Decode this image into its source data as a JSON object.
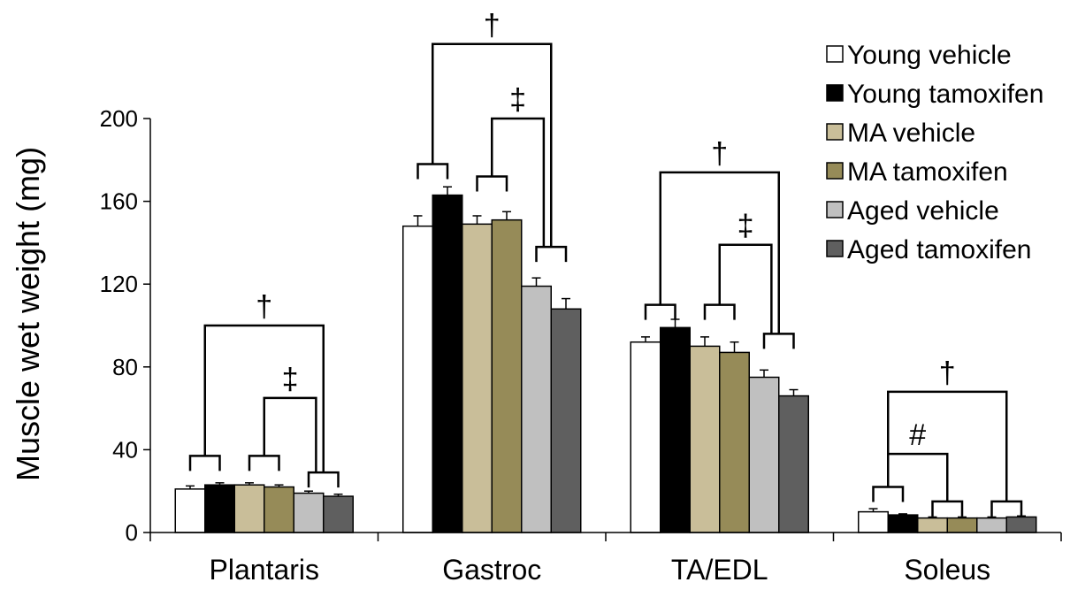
{
  "chart_data": {
    "type": "bar",
    "ylabel": "Muscle wet weight (mg)",
    "ylim": [
      0,
      200
    ],
    "yticks": [
      0,
      40,
      80,
      120,
      160,
      200
    ],
    "categories": [
      "Plantaris",
      "Gastroc",
      "TA/EDL",
      "Soleus"
    ],
    "legend_position": "top-right",
    "series": [
      {
        "name": "Young vehicle",
        "color": "#ffffff",
        "values": [
          21,
          148,
          92,
          10
        ],
        "errors": [
          1.5,
          5,
          2.5,
          1.5
        ]
      },
      {
        "name": "Young tamoxifen",
        "color": "#000000",
        "values": [
          23,
          163,
          99,
          8.5
        ],
        "errors": [
          1,
          4,
          4,
          0.5
        ]
      },
      {
        "name": "MA vehicle",
        "color": "#c9be99",
        "values": [
          23,
          149,
          90,
          7
        ],
        "errors": [
          1,
          4,
          4.5,
          0.5
        ]
      },
      {
        "name": "MA tamoxifen",
        "color": "#968b58",
        "values": [
          22,
          151,
          87,
          7
        ],
        "errors": [
          1,
          4,
          5,
          0.5
        ]
      },
      {
        "name": "Aged vehicle",
        "color": "#c0c0c0",
        "values": [
          19,
          119,
          75,
          7
        ],
        "errors": [
          1,
          4,
          3.5,
          0.5
        ]
      },
      {
        "name": "Aged tamoxifen",
        "color": "#5f5f5f",
        "values": [
          17.5,
          108,
          66,
          7.5
        ],
        "errors": [
          1,
          5,
          3,
          0.5
        ]
      }
    ],
    "annotations": [
      {
        "symbol": "†",
        "category": "Plantaris"
      },
      {
        "symbol": "‡",
        "category": "Plantaris"
      },
      {
        "symbol": "†",
        "category": "Gastroc"
      },
      {
        "symbol": "‡",
        "category": "Gastroc"
      },
      {
        "symbol": "†",
        "category": "TA/EDL"
      },
      {
        "symbol": "‡",
        "category": "TA/EDL"
      },
      {
        "symbol": "†",
        "category": "Soleus"
      },
      {
        "symbol": "#",
        "category": "Soleus"
      }
    ]
  }
}
